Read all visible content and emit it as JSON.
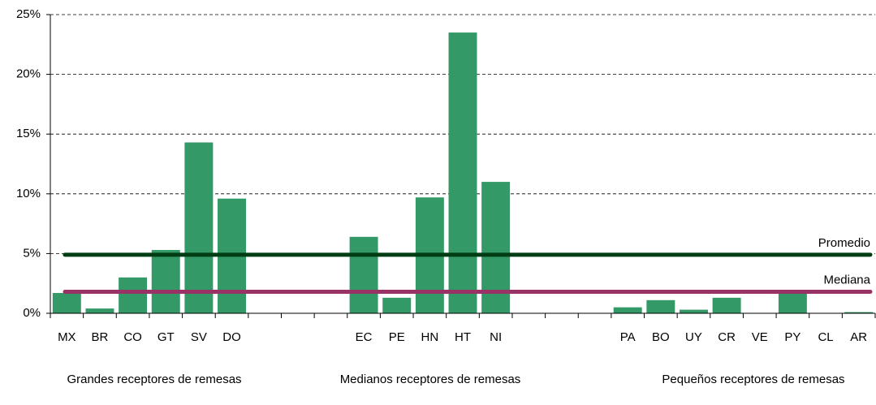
{
  "chart_data": {
    "type": "bar",
    "categories": [
      "MX",
      "BR",
      "CO",
      "GT",
      "SV",
      "DO",
      null,
      null,
      null,
      "EC",
      "PE",
      "HN",
      "HT",
      "NI",
      null,
      null,
      null,
      "PA",
      "BO",
      "UY",
      "CR",
      "VE",
      "PY",
      "CL",
      "AR"
    ],
    "values": [
      1.7,
      0.4,
      3.0,
      5.3,
      14.3,
      9.6,
      null,
      null,
      null,
      6.4,
      1.3,
      9.7,
      23.5,
      11.0,
      null,
      null,
      null,
      0.5,
      1.1,
      0.3,
      1.3,
      0.0,
      1.7,
      0.0,
      0.1
    ],
    "color": "#339966",
    "groups": [
      "Grandes receptores de remesas",
      "Medianos receptores de remesas",
      "Pequeños receptores de remesas"
    ],
    "reference_lines": [
      {
        "name": "Promedio",
        "value": 4.9,
        "color": "#003d14"
      },
      {
        "name": "Mediana",
        "value": 1.8,
        "color": "#993366"
      }
    ],
    "ylim": [
      0,
      25
    ],
    "yticks": [
      {
        "value": 0,
        "label": "0%"
      },
      {
        "value": 5,
        "label": "5%"
      },
      {
        "value": 10,
        "label": "10%"
      },
      {
        "value": 15,
        "label": "15%"
      },
      {
        "value": 20,
        "label": "20%"
      },
      {
        "value": 25,
        "label": "25%"
      }
    ],
    "grid": true
  }
}
